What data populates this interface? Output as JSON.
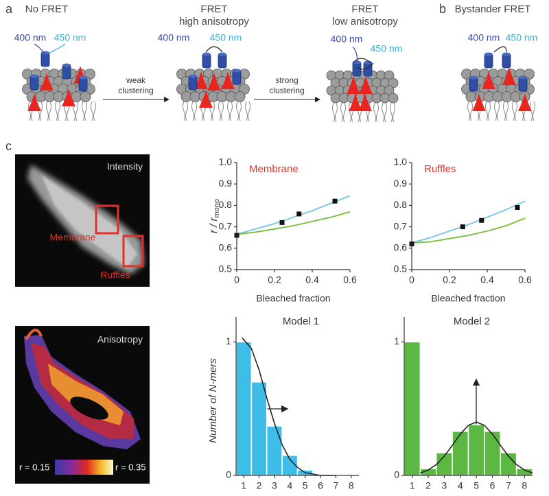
{
  "panel_a": {
    "label": "a",
    "titles": [
      [
        "No FRET"
      ],
      [
        "FRET",
        "high anisotropy"
      ],
      [
        "FRET",
        "low anisotropy"
      ]
    ],
    "steps": [
      [
        "weak",
        "clustering"
      ],
      [
        "strong",
        "clustering"
      ]
    ],
    "donor": "400 nm",
    "acceptor": "450 nm"
  },
  "panel_b": {
    "label": "b",
    "title": "Bystander FRET"
  },
  "panel_c": {
    "label": "c",
    "images": [
      {
        "title": "Intensity",
        "regions": [
          "Membrane",
          "Ruffles"
        ]
      },
      {
        "title": "Anisotropy",
        "scale_min": "r = 0.15",
        "scale_max": "r = 0.35"
      }
    ]
  },
  "chart_data": [
    {
      "type": "scatter",
      "title": "Membrane",
      "title_color": "#d9342b",
      "x_label": "Bleached fraction",
      "y_label": "r / r",
      "y_label_sub": "mono",
      "xlim": [
        0,
        0.6
      ],
      "xticks": [
        0,
        0.2,
        0.4,
        0.6
      ],
      "ylim": [
        0.5,
        1
      ],
      "yticks": [
        0.5,
        0.6,
        0.7,
        0.8,
        0.9,
        {
          "value": 1,
          "label": "1.0"
        }
      ],
      "points": {
        "color": "#111111",
        "x": [
          0,
          0.24,
          0.33,
          0.52
        ],
        "values": [
          0.66,
          0.72,
          0.76,
          0.82
        ]
      },
      "series": [
        {
          "color": "#7cc8e8",
          "x": [
            0,
            0.1,
            0.2,
            0.3,
            0.4,
            0.5,
            0.6
          ],
          "values": [
            0.665,
            0.69,
            0.715,
            0.745,
            0.775,
            0.81,
            0.845
          ]
        },
        {
          "color": "#7dc242",
          "x": [
            0,
            0.1,
            0.2,
            0.3,
            0.4,
            0.5,
            0.6
          ],
          "values": [
            0.665,
            0.675,
            0.69,
            0.705,
            0.725,
            0.745,
            0.77
          ]
        }
      ]
    },
    {
      "type": "scatter",
      "title": "Ruffles",
      "title_color": "#d9342b",
      "x_label": "Bleached fraction",
      "xlim": [
        0,
        0.6
      ],
      "xticks": [
        0,
        0.2,
        0.4,
        0.6
      ],
      "ylim": [
        0.5,
        1
      ],
      "yticks": [
        0.5,
        0.6,
        0.7,
        0.8,
        0.9,
        {
          "value": 1,
          "label": "1.0"
        }
      ],
      "points": {
        "color": "#111111",
        "x": [
          0,
          0.27,
          0.37,
          0.56
        ],
        "values": [
          0.62,
          0.7,
          0.73,
          0.79
        ]
      },
      "series": [
        {
          "color": "#7cc8e8",
          "x": [
            0,
            0.1,
            0.2,
            0.3,
            0.4,
            0.5,
            0.6
          ],
          "values": [
            0.625,
            0.65,
            0.68,
            0.71,
            0.745,
            0.78,
            0.82
          ]
        },
        {
          "color": "#7dc242",
          "x": [
            0,
            0.1,
            0.2,
            0.3,
            0.4,
            0.5,
            0.6
          ],
          "values": [
            0.625,
            0.63,
            0.645,
            0.66,
            0.68,
            0.705,
            0.74
          ]
        }
      ]
    },
    {
      "type": "bar",
      "title": "Model 1",
      "y_label": "Number of N-mers",
      "color": "#3fbde9",
      "x": [
        1,
        2,
        3,
        4,
        5,
        6,
        7,
        8
      ],
      "values": [
        1,
        0.7,
        0.37,
        0.15,
        0.04,
        0,
        0,
        0
      ],
      "xlim": [
        0.5,
        8.5
      ],
      "xticks": [
        1,
        2,
        3,
        4,
        5,
        6,
        7,
        8
      ],
      "ylim": [
        0,
        1.12
      ],
      "yticks": [
        0,
        1
      ],
      "curve": {
        "color": "#222222",
        "x": [
          0.9,
          1.5,
          2,
          2.5,
          3,
          3.5,
          4,
          4.5,
          5,
          6,
          7
        ],
        "values": [
          1.03,
          0.95,
          0.79,
          0.58,
          0.39,
          0.23,
          0.12,
          0.06,
          0.02,
          0,
          0
        ]
      }
    },
    {
      "type": "bar",
      "title": "Model 2",
      "color": "#5db843",
      "x": [
        1,
        2,
        3,
        4,
        5,
        6,
        7,
        8
      ],
      "values": [
        1,
        0.05,
        0.17,
        0.33,
        0.38,
        0.33,
        0.17,
        0.05
      ],
      "xlim": [
        0.5,
        8.5
      ],
      "xticks": [
        1,
        2,
        3,
        4,
        5,
        6,
        7,
        8
      ],
      "ylim": [
        0,
        1.12
      ],
      "yticks": [
        0,
        1
      ],
      "curve": {
        "color": "#222222",
        "x": [
          1.5,
          2,
          2.5,
          3,
          3.5,
          4,
          4.5,
          5,
          5.5,
          6,
          6.5,
          7,
          7.5,
          8,
          8.5
        ],
        "values": [
          0.018,
          0.04,
          0.081,
          0.144,
          0.225,
          0.31,
          0.375,
          0.4,
          0.375,
          0.31,
          0.225,
          0.144,
          0.081,
          0.04,
          0.018
        ]
      }
    }
  ]
}
